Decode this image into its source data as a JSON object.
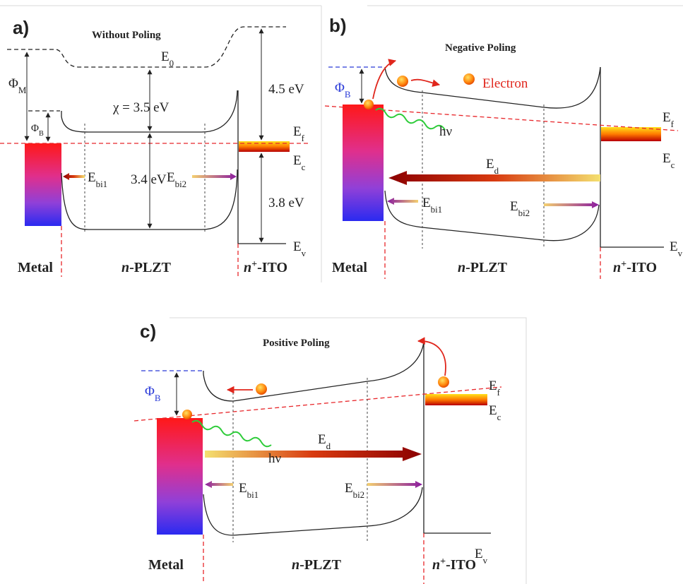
{
  "panels": [
    {
      "tag": "a)",
      "title": "Without Poling",
      "labels": {
        "e0": [
          "E",
          "0"
        ],
        "phi_m": [
          "Φ",
          "M"
        ],
        "phi_b": [
          "Φ",
          "B"
        ],
        "chi": "χ = 3.5 eV",
        "gap_ito_top": "4.5 eV",
        "ef": [
          "E",
          "f"
        ],
        "ec": [
          "E",
          "c"
        ],
        "gap": "3.4 eV",
        "ebi1": [
          "E",
          "bi1"
        ],
        "ebi2": [
          "E",
          "bi2"
        ],
        "gap_ito_bottom": "3.8 eV",
        "ev": [
          "E",
          "v"
        ],
        "metal": "Metal",
        "plzt": [
          "n",
          "-PLZT"
        ],
        "ito": [
          "n",
          "+",
          "-ITO"
        ]
      }
    },
    {
      "tag": "b)",
      "title": "Negative Poling",
      "labels": {
        "phi_b": [
          "Φ",
          "B"
        ],
        "electron": "Electron",
        "ef": [
          "E",
          "f"
        ],
        "hv": "hν",
        "ed": [
          "E",
          "d"
        ],
        "ec": [
          "E",
          "c"
        ],
        "ebi1": [
          "E",
          "bi1"
        ],
        "ebi2": [
          "E",
          "bi2"
        ],
        "ev": [
          "E",
          "v"
        ],
        "metal": "Metal",
        "plzt": [
          "n",
          "-PLZT"
        ],
        "ito": [
          "n",
          "+",
          "-ITO"
        ]
      }
    },
    {
      "tag": "c)",
      "title": "Positive Poling",
      "labels": {
        "phi_b": [
          "Φ",
          "B"
        ],
        "ef": [
          "E",
          "f"
        ],
        "ec": [
          "E",
          "c"
        ],
        "hv": "hν",
        "ed": [
          "E",
          "d"
        ],
        "ebi1": [
          "E",
          "bi1"
        ],
        "ebi2": [
          "E",
          "bi2"
        ],
        "ev": [
          "E",
          "v"
        ],
        "metal": "Metal",
        "plzt": [
          "n",
          "-PLZT"
        ],
        "ito": [
          "n",
          "+",
          "-ITO"
        ]
      }
    }
  ]
}
